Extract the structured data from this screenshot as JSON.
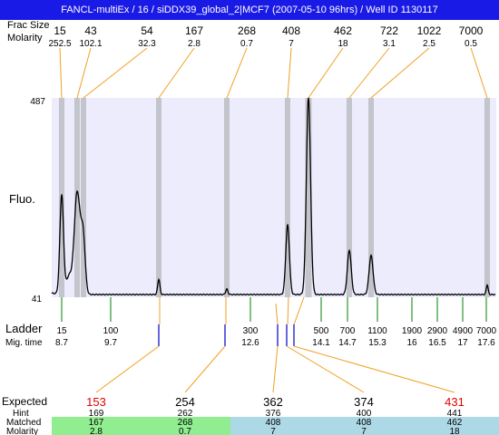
{
  "window": {
    "title": "FANCL-multiEx / 16 / siDDX39_global_2|MCF7 (2007-05-10 96hrs) / Well ID 1130117"
  },
  "labels": {
    "fraction_size": "Frac Size",
    "molarity": "Molarity",
    "y_axis": "Fluo.",
    "ladder": "Ladder",
    "mig_time": "Mig. time",
    "expected": "Expected",
    "hint": "Hint",
    "matched": "Matched",
    "molarity_bottom": "Molarity"
  },
  "colors": {
    "title_bg": "#1a1ae6",
    "plot_bg": "#ececfc",
    "band": "#c4c4cc",
    "trace": "#000000",
    "orange": "#f0a020",
    "ladder_green": "#008000",
    "fragment_blue": "#0000cc",
    "expected_red": "#e00000",
    "matched_green": "#90ee90",
    "matched_blue": "#add8e6"
  },
  "chart_data": {
    "type": "line",
    "ylim": [
      41,
      487
    ],
    "y_ticks": [
      "487",
      "41"
    ],
    "peaks": [
      {
        "size": "15",
        "molarity": "252.5"
      },
      {
        "size": "43",
        "molarity": "102.1"
      },
      {
        "size": "54",
        "molarity": "32.3"
      },
      {
        "size": "167",
        "molarity": "2.8"
      },
      {
        "size": "268",
        "molarity": "0.7"
      },
      {
        "size": "408",
        "molarity": "7"
      },
      {
        "size": "462",
        "molarity": "18"
      },
      {
        "size": "722",
        "molarity": "3.1"
      },
      {
        "size": "1022",
        "molarity": "2.5"
      },
      {
        "size": "7000",
        "molarity": "0.5"
      }
    ],
    "ladder": [
      {
        "size": "15",
        "mig": "8.7"
      },
      {
        "size": "100",
        "mig": "9.7"
      },
      {
        "size": "300",
        "mig": "12.6"
      },
      {
        "size": "500",
        "mig": "14.1"
      },
      {
        "size": "700",
        "mig": "14.7"
      },
      {
        "size": "1100",
        "mig": "15.3"
      },
      {
        "size": "1900",
        "mig": "16"
      },
      {
        "size": "2900",
        "mig": "16.5"
      },
      {
        "size": "4900",
        "mig": "17"
      },
      {
        "size": "7000",
        "mig": "17.6"
      }
    ],
    "expected": [
      {
        "expected": "153",
        "hint": "169",
        "matched": "167",
        "molarity": "2.8",
        "flag": "red"
      },
      {
        "expected": "254",
        "hint": "262",
        "matched": "268",
        "molarity": "0.7",
        "flag": "normal"
      },
      {
        "expected": "362",
        "hint": "376",
        "matched": "408",
        "molarity": "7",
        "flag": "normal"
      },
      {
        "expected": "374",
        "hint": "400",
        "matched": "408",
        "molarity": "7",
        "flag": "normal"
      },
      {
        "expected": "431",
        "hint": "441",
        "matched": "462",
        "molarity": "18",
        "flag": "red"
      }
    ]
  }
}
